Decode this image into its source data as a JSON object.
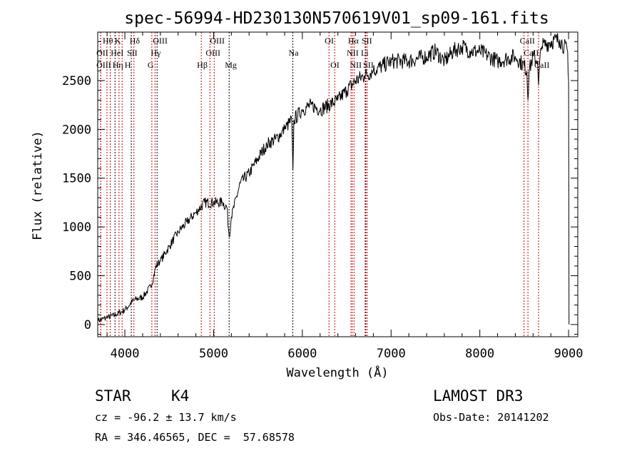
{
  "chart_data": {
    "type": "line",
    "title": "spec-56994-HD230130N570619V01_sp09-161.fits",
    "xlabel": "Wavelength (Å)",
    "ylabel": "Flux (relative)",
    "xlim": [
      3694,
      9104
    ],
    "ylim": [
      -125,
      2997
    ],
    "xticks": [
      4000,
      5000,
      6000,
      7000,
      8000,
      9000
    ],
    "yticks": [
      0,
      500,
      1000,
      1500,
      2000,
      2500
    ],
    "grid": false,
    "series": [
      {
        "name": "flux",
        "x": [
          3700,
          3800,
          3900,
          4000,
          4100,
          4200,
          4300,
          4350,
          4400,
          4500,
          4600,
          4700,
          4800,
          4900,
          5000,
          5100,
          5150,
          5175,
          5200,
          5300,
          5400,
          5500,
          5600,
          5700,
          5800,
          5880,
          5893,
          5905,
          6000,
          6100,
          6200,
          6300,
          6400,
          6500,
          6600,
          6700,
          6800,
          6900,
          7000,
          7200,
          7400,
          7500,
          7600,
          7700,
          7800,
          7900,
          8000,
          8200,
          8400,
          8500,
          8530,
          8542,
          8555,
          8600,
          8650,
          8662,
          8675,
          8700,
          8800,
          8900,
          8950,
          8990,
          9000,
          9005
        ],
        "y": [
          40,
          70,
          100,
          150,
          250,
          280,
          400,
          600,
          650,
          800,
          950,
          1050,
          1150,
          1250,
          1250,
          1250,
          1200,
          900,
          1100,
          1450,
          1550,
          1700,
          1850,
          1900,
          2000,
          2100,
          1580,
          2100,
          2200,
          2250,
          2200,
          2250,
          2300,
          2400,
          2500,
          2550,
          2600,
          2650,
          2700,
          2700,
          2750,
          2800,
          2700,
          2800,
          2850,
          2800,
          2800,
          2700,
          2750,
          2650,
          2600,
          2300,
          2600,
          2750,
          2700,
          2450,
          2700,
          2850,
          2900,
          2920,
          2850,
          2800,
          2500,
          0
        ]
      }
    ],
    "lines": [
      {
        "label": "OII",
        "w": 3727,
        "row": 1,
        "color": "#cc0000"
      },
      {
        "label": "OIII",
        "w": 3727,
        "row": 2,
        "color": "#cc0000"
      },
      {
        "label": "Hθ",
        "w": 3798,
        "row": 0,
        "color": "#cc0000"
      },
      {
        "label": "Hη",
        "w": 3835,
        "row": 2,
        "color": "#cc0000"
      },
      {
        "label": "HeI",
        "w": 3889,
        "row": 1,
        "color": "#000000"
      },
      {
        "label": "K",
        "w": 3934,
        "row": 0,
        "color": "#cc0000"
      },
      {
        "label": "H",
        "w": 3969,
        "row": 2,
        "color": "#cc0000"
      },
      {
        "label": "SII",
        "w": 4072,
        "row": 1,
        "color": "#000000"
      },
      {
        "label": "Hδ",
        "w": 4102,
        "row": 0,
        "color": "#cc0000"
      },
      {
        "label": "G",
        "w": 4304,
        "row": 2,
        "color": "#cc0000"
      },
      {
        "label": "Hγ",
        "w": 4340,
        "row": 1,
        "color": "#cc0000"
      },
      {
        "label": "OIII",
        "w": 4363,
        "row": 0,
        "color": "#000000"
      },
      {
        "label": "Hβ",
        "w": 4861,
        "row": 2,
        "color": "#cc0000"
      },
      {
        "label": "OIII",
        "w": 4959,
        "row": 1,
        "color": "#cc0000"
      },
      {
        "label": "OIII",
        "w": 5007,
        "row": 0,
        "color": "#cc0000"
      },
      {
        "label": "Mg",
        "w": 5175,
        "row": 2,
        "color": "#000000"
      },
      {
        "label": "Na",
        "w": 5893,
        "row": 1,
        "color": "#000000"
      },
      {
        "label": "OI",
        "w": 6300,
        "row": 0,
        "color": "#cc0000"
      },
      {
        "label": "OI",
        "w": 6364,
        "row": 2,
        "color": "#cc0000"
      },
      {
        "label": "NII",
        "w": 6548,
        "row": 1,
        "color": "#cc0000"
      },
      {
        "label": "Hα",
        "w": 6563,
        "row": 0,
        "color": "#cc0000"
      },
      {
        "label": "NII",
        "w": 6583,
        "row": 2,
        "color": "#cc0000"
      },
      {
        "label": "Li",
        "w": 6708,
        "row": 1,
        "color": "#000000"
      },
      {
        "label": "SII",
        "w": 6716,
        "row": 0,
        "color": "#cc0000"
      },
      {
        "label": "SII",
        "w": 6731,
        "row": 2,
        "color": "#cc0000"
      },
      {
        "label": "CaII",
        "w": 8498,
        "row": 0,
        "color": "#cc0000"
      },
      {
        "label": "CaII",
        "w": 8542,
        "row": 1,
        "color": "#cc0000"
      },
      {
        "label": "CaII",
        "w": 8662,
        "row": 2,
        "color": "#cc0000"
      }
    ]
  },
  "info": {
    "class": "STAR",
    "subclass": "K4",
    "survey": "LAMOST DR3",
    "cz": "cz = -96.2 ± 13.7 km/s",
    "obs_date": "Obs-Date: 20141202",
    "coords": "RA = 346.46565, DEC =  57.68578"
  }
}
